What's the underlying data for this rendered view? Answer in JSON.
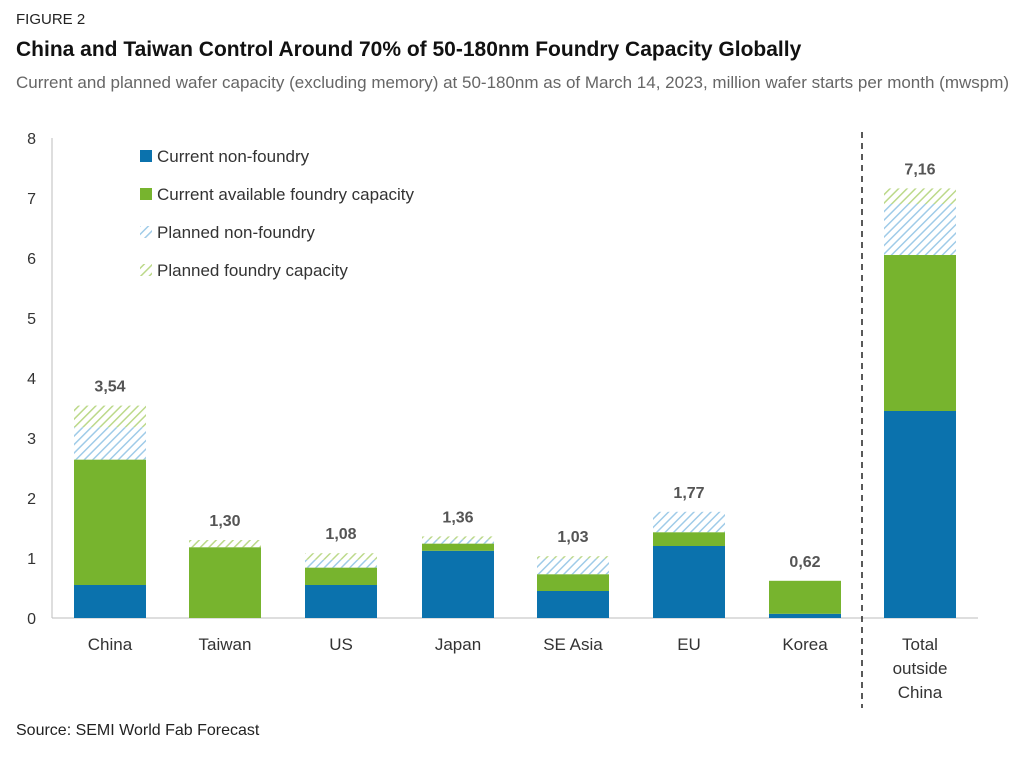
{
  "figure_label": "FIGURE 2",
  "title": "China and Taiwan Control Around 70% of 50-180nm Foundry Capacity Globally",
  "subtitle": "Current and planned wafer capacity (excluding memory) at 50-180nm as of March 14, 2023, million wafer starts per month (mwspm)",
  "source": "Source: SEMI World Fab Forecast",
  "colors": {
    "current_non_foundry": "#0b72ad",
    "current_foundry": "#77b42e",
    "planned_non_foundry": "#9fcbe8",
    "planned_foundry": "#bcd98a"
  },
  "chart_data": {
    "type": "bar",
    "stacked": true,
    "categories": [
      "China",
      "Taiwan",
      "US",
      "Japan",
      "SE Asia",
      "EU",
      "Korea",
      [
        "Total",
        "outside",
        "China"
      ]
    ],
    "series": [
      {
        "name": "Current non-foundry",
        "style": "solid",
        "color": "#0b72ad",
        "values": [
          0.55,
          0.0,
          0.55,
          1.12,
          0.45,
          1.2,
          0.07,
          3.45
        ]
      },
      {
        "name": "Current available foundry capacity",
        "style": "solid",
        "color": "#77b42e",
        "values": [
          2.09,
          1.18,
          0.29,
          0.12,
          0.28,
          0.23,
          0.55,
          2.6
        ]
      },
      {
        "name": "Planned non-foundry",
        "style": "hatched",
        "color": "#9fcbe8",
        "values": [
          0.54,
          0.0,
          0.13,
          0.07,
          0.26,
          0.34,
          0.0,
          0.85
        ]
      },
      {
        "name": "Planned foundry capacity",
        "style": "hatched",
        "color": "#bcd98a",
        "values": [
          0.36,
          0.12,
          0.11,
          0.05,
          0.04,
          0.0,
          0.0,
          0.26
        ]
      }
    ],
    "totals": [
      "3,54",
      "1,30",
      "1,08",
      "1,36",
      "1,03",
      "1,77",
      "0,62",
      "7,16"
    ],
    "ylim": [
      0,
      8
    ],
    "yticks": [
      0,
      1,
      2,
      3,
      4,
      5,
      6,
      7,
      8
    ],
    "grid": false,
    "legend": "top-left, inside plot",
    "separator_before_last": "dashed vertical line"
  }
}
